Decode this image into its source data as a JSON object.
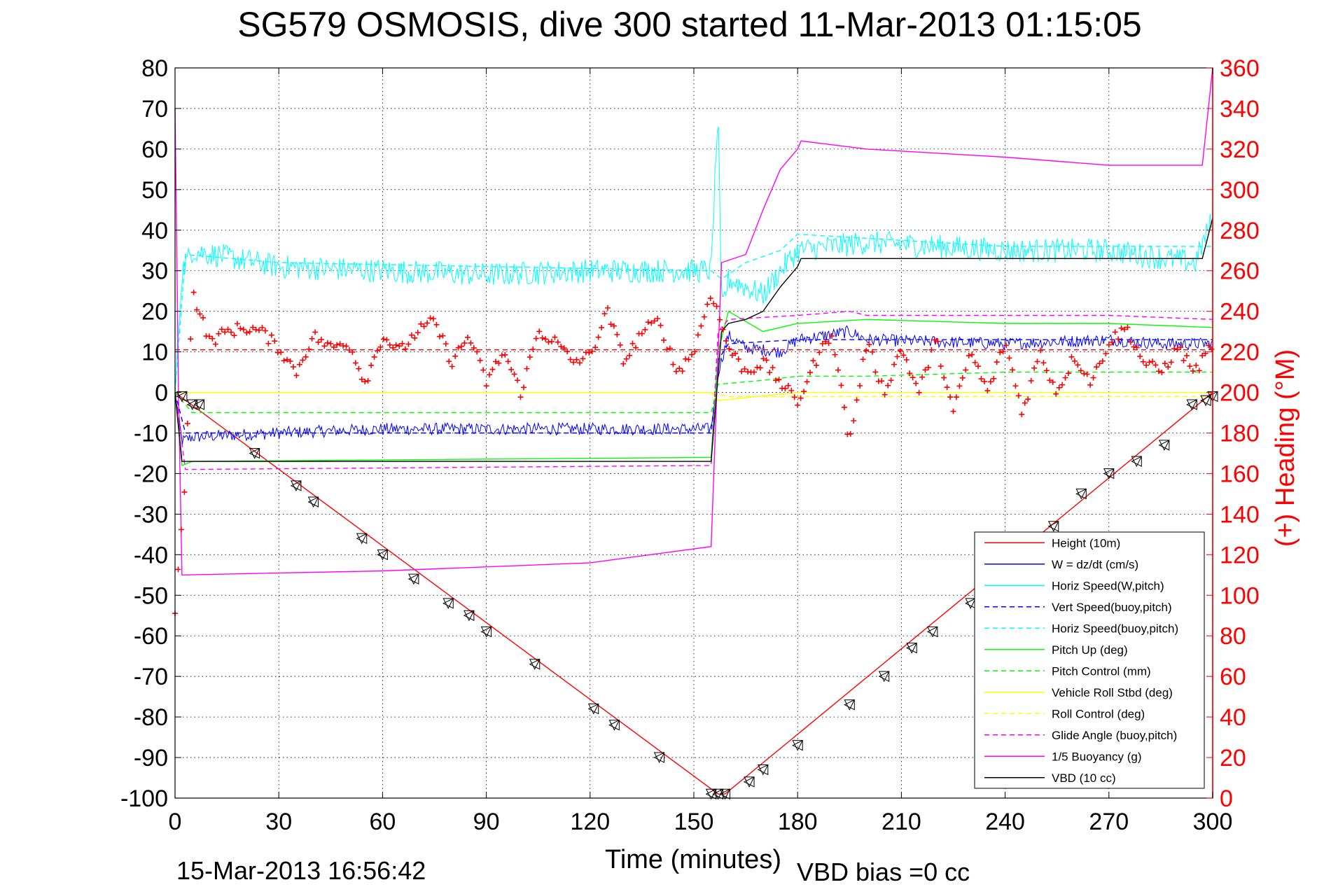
{
  "chart_data": {
    "type": "line",
    "title": "SG579 OSMOSIS, dive 300 started 11-Mar-2013 01:15:05",
    "xlabel": "Time (minutes)",
    "ylabel_right": "(+) Heading (°M)",
    "footer_left": "15-Mar-2013 16:56:42",
    "footer_right": "VBD bias =0 cc",
    "xlim": [
      0,
      300
    ],
    "ylim_left": [
      -100,
      80
    ],
    "ylim_right": [
      0,
      360
    ],
    "xticks": [
      0,
      30,
      60,
      90,
      120,
      150,
      180,
      210,
      240,
      270,
      300
    ],
    "yticks_left": [
      80,
      70,
      60,
      50,
      40,
      30,
      20,
      10,
      0,
      -10,
      -20,
      -30,
      -40,
      -50,
      -60,
      -70,
      -80,
      -90,
      -100
    ],
    "yticks_right": [
      360,
      340,
      320,
      300,
      280,
      260,
      240,
      220,
      200,
      180,
      160,
      140,
      120,
      100,
      80,
      60,
      40,
      20,
      0
    ],
    "grid": true,
    "legend_position": "bottom-right",
    "legend": [
      {
        "label": "Height (10m)",
        "color": "#ff0000",
        "dash": "solid"
      },
      {
        "label": "W = dz/dt (cm/s)",
        "color": "#0000ff",
        "dash": "solid"
      },
      {
        "label": "Horiz Speed(W,pitch)",
        "color": "#00ffff",
        "dash": "solid"
      },
      {
        "label": "Vert Speed(buoy,pitch)",
        "color": "#0000ff",
        "dash": "dashed"
      },
      {
        "label": "Horiz Speed(buoy,pitch)",
        "color": "#00ffff",
        "dash": "dashed"
      },
      {
        "label": "Pitch Up (deg)",
        "color": "#00ff00",
        "dash": "solid"
      },
      {
        "label": "Pitch Control (mm)",
        "color": "#00ff00",
        "dash": "dashed"
      },
      {
        "label": "Vehicle Roll Stbd (deg)",
        "color": "#ffff00",
        "dash": "solid"
      },
      {
        "label": "Roll Control (deg)",
        "color": "#ffff00",
        "dash": "dashed"
      },
      {
        "label": "Glide Angle (buoy,pitch)",
        "color": "#ff00ff",
        "dash": "dashed"
      },
      {
        "label": "1/5 Buoyancy (g)",
        "color": "#ff00ff",
        "dash": "solid"
      },
      {
        "label": "VBD (10 cc)",
        "color": "#000000",
        "dash": "solid"
      }
    ],
    "series": [
      {
        "name": "Height (10m)",
        "axis": "left",
        "color": "#ff0000",
        "dash": "solid",
        "x": [
          0,
          157,
          159,
          300
        ],
        "y": [
          0,
          -99,
          -99,
          0
        ]
      },
      {
        "name": "W = dz/dt (cm/s)",
        "axis": "left",
        "color": "#0000ff",
        "dash": "solid",
        "noise": 1.5,
        "x": [
          0,
          2,
          5,
          30,
          60,
          90,
          120,
          155,
          157,
          160,
          165,
          175,
          180,
          195,
          200,
          240,
          270,
          285,
          300
        ],
        "y": [
          0,
          -12,
          -11,
          -10,
          -9,
          -9,
          -9,
          -9,
          5,
          14,
          11,
          10,
          13,
          15,
          13,
          12,
          13,
          12,
          12
        ]
      },
      {
        "name": "Horiz Speed(W,pitch)",
        "axis": "left",
        "color": "#00ffff",
        "dash": "solid",
        "noise": 3,
        "x": [
          0,
          2,
          5,
          30,
          60,
          90,
          120,
          155,
          157,
          158,
          160,
          165,
          170,
          175,
          180,
          200,
          240,
          270,
          295,
          300
        ],
        "y": [
          0,
          30,
          35,
          31,
          30,
          29,
          30,
          30,
          70,
          20,
          28,
          26,
          24,
          30,
          35,
          37,
          35,
          35,
          32,
          43
        ]
      },
      {
        "name": "Vert Speed(buoy,pitch)",
        "axis": "left",
        "color": "#0000ff",
        "dash": "dashed",
        "x": [
          0,
          3,
          155,
          157,
          160,
          180,
          300
        ],
        "y": [
          0,
          -10,
          -10,
          8,
          12,
          13,
          13
        ]
      },
      {
        "name": "Horiz Speed(buoy,pitch)",
        "axis": "left",
        "color": "#00ffff",
        "dash": "dashed",
        "x": [
          0,
          3,
          30,
          155,
          158,
          165,
          175,
          180,
          200,
          240,
          300
        ],
        "y": [
          0,
          34,
          32,
          30,
          28,
          32,
          35,
          39,
          38,
          36,
          36
        ]
      },
      {
        "name": "Pitch Up (deg)",
        "axis": "left",
        "color": "#00ff00",
        "dash": "solid",
        "x": [
          0,
          2,
          5,
          155,
          157,
          160,
          170,
          180,
          200,
          240,
          270,
          300
        ],
        "y": [
          0,
          -18,
          -17,
          -16,
          10,
          20,
          15,
          17,
          18,
          17,
          17,
          16
        ]
      },
      {
        "name": "Pitch Control (mm)",
        "axis": "left",
        "color": "#00ff00",
        "dash": "dashed",
        "x": [
          0,
          5,
          155,
          157,
          170,
          180,
          200,
          240,
          300
        ],
        "y": [
          0,
          -5,
          -5,
          2,
          3,
          4,
          4,
          5,
          5
        ]
      },
      {
        "name": "Vehicle Roll Stbd (deg)",
        "axis": "left",
        "color": "#ffff00",
        "dash": "solid",
        "x": [
          0,
          5,
          155,
          157,
          180,
          240,
          300
        ],
        "y": [
          0,
          0,
          0,
          -2,
          0,
          0,
          0
        ]
      },
      {
        "name": "Roll Control (deg)",
        "axis": "left",
        "color": "#ffff00",
        "dash": "dashed",
        "x": [
          0,
          5,
          155,
          160,
          180,
          300
        ],
        "y": [
          0,
          0,
          0,
          -1,
          -1,
          -1
        ]
      },
      {
        "name": "Glide Angle (buoy,pitch)",
        "axis": "left",
        "color": "#ff00ff",
        "dash": "dashed",
        "x": [
          0,
          3,
          155,
          157,
          160,
          180,
          195,
          200,
          240,
          270,
          300
        ],
        "y": [
          0,
          -19,
          -18,
          15,
          18,
          19,
          20,
          19,
          19,
          19,
          18
        ]
      },
      {
        "name": "1/5 Buoyancy (g)",
        "axis": "left",
        "color": "#ff00ff",
        "dash": "solid",
        "x": [
          0,
          1,
          2,
          60,
          120,
          155,
          158,
          165,
          170,
          175,
          180,
          181,
          200,
          240,
          270,
          297,
          300
        ],
        "y": [
          70,
          0,
          -45,
          -44,
          -42,
          -38,
          32,
          34,
          45,
          55,
          60,
          62,
          60,
          58,
          56,
          56,
          80
        ]
      },
      {
        "name": "VBD (10 cc)",
        "axis": "left",
        "color": "#000000",
        "dash": "solid",
        "x": [
          0,
          2,
          155,
          158,
          160,
          165,
          170,
          175,
          180,
          181,
          200,
          240,
          270,
          297,
          300
        ],
        "y": [
          0,
          -17,
          -17,
          15,
          17,
          18,
          20,
          26,
          31,
          33,
          33,
          33,
          33,
          33,
          43
        ]
      },
      {
        "name": "(+) Heading (°M)",
        "axis": "right",
        "color": "#ff0000",
        "marker": "+",
        "x": [
          0,
          3,
          5,
          10,
          15,
          20,
          25,
          30,
          35,
          40,
          45,
          50,
          55,
          60,
          65,
          70,
          75,
          80,
          85,
          90,
          95,
          100,
          105,
          110,
          115,
          120,
          125,
          130,
          135,
          140,
          145,
          150,
          155,
          160,
          165,
          170,
          175,
          180,
          185,
          190,
          195,
          200,
          205,
          210,
          215,
          220,
          225,
          230,
          235,
          240,
          245,
          250,
          255,
          260,
          265,
          270,
          275,
          280,
          285,
          290,
          295,
          300
        ],
        "y": [
          90,
          160,
          250,
          225,
          230,
          232,
          230,
          222,
          210,
          228,
          222,
          225,
          205,
          228,
          220,
          230,
          235,
          215,
          228,
          205,
          220,
          200,
          230,
          225,
          215,
          218,
          240,
          215,
          230,
          235,
          210,
          220,
          250,
          222,
          210,
          215,
          205,
          195,
          215,
          230,
          175,
          225,
          200,
          222,
          200,
          226,
          190,
          220,
          200,
          225,
          190,
          220,
          200,
          218,
          205,
          225,
          232,
          215,
          210,
          222,
          210,
          225
        ]
      },
      {
        "name": "Heading target",
        "axis": "right",
        "color": "#ff0000",
        "dash": "dashed",
        "x": [
          0,
          300
        ],
        "y": [
          221,
          221
        ]
      }
    ],
    "depth_markers": {
      "axis": "left",
      "x": [
        2,
        5,
        7,
        23,
        35,
        40,
        54,
        60,
        69,
        79,
        85,
        90,
        104,
        121,
        127,
        140,
        155,
        157,
        159,
        166,
        170,
        180,
        195,
        205,
        213,
        219,
        230,
        254,
        262,
        270,
        278,
        286,
        294,
        298,
        300
      ],
      "y": [
        -1,
        -3,
        -3,
        -15,
        -23,
        -27,
        -36,
        -40,
        -46,
        -52,
        -55,
        -59,
        -67,
        -78,
        -82,
        -90,
        -99,
        -99,
        -99,
        -96,
        -93,
        -87,
        -77,
        -70,
        -63,
        -59,
        -52,
        -33,
        -25,
        -20,
        -17,
        -13,
        -3,
        -2,
        -1
      ]
    }
  }
}
